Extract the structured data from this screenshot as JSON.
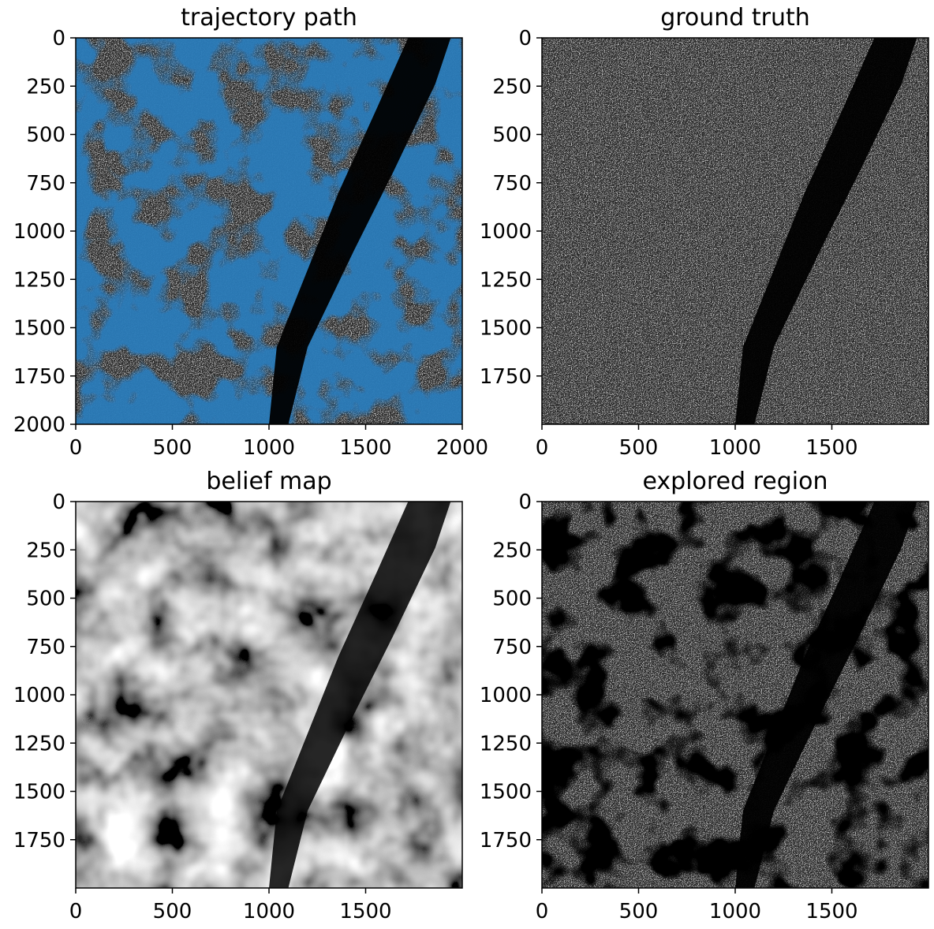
{
  "chart_data": [
    {
      "type": "heatmap",
      "title": "trajectory path",
      "xlim": [
        0,
        2000
      ],
      "ylim": [
        2000,
        0
      ],
      "xticks": [
        0,
        500,
        1000,
        1500,
        2000
      ],
      "yticks": [
        0,
        250,
        500,
        750,
        1000,
        1250,
        1500,
        1750,
        2000
      ],
      "xtick_labels": [
        "0",
        "500",
        "1000",
        "1500",
        "2000"
      ],
      "ytick_labels": [
        "0",
        "250",
        "500",
        "750",
        "1000",
        "1250",
        "1500",
        "1750",
        "2000"
      ],
      "overlay_color": "#2b7bba",
      "image": "grayscale satellite mosaic with blue trajectory coverage overlay"
    },
    {
      "type": "heatmap",
      "title": "ground truth",
      "xlim": [
        0,
        2000
      ],
      "ylim": [
        2000,
        0
      ],
      "xticks": [
        0,
        500,
        1000,
        1500
      ],
      "yticks": [
        0,
        250,
        500,
        750,
        1000,
        1250,
        1500,
        1750
      ],
      "xtick_labels": [
        "0",
        "500",
        "1000",
        "1500"
      ],
      "ytick_labels": [
        "0",
        "250",
        "500",
        "750",
        "1000",
        "1250",
        "1500",
        "1750"
      ],
      "image": "grayscale satellite mosaic"
    },
    {
      "type": "heatmap",
      "title": "belief map",
      "xlim": [
        0,
        2000
      ],
      "ylim": [
        2000,
        0
      ],
      "xticks": [
        0,
        500,
        1000,
        1500
      ],
      "yticks": [
        0,
        250,
        500,
        750,
        1000,
        1250,
        1500,
        1750
      ],
      "xtick_labels": [
        "0",
        "500",
        "1000",
        "1500"
      ],
      "ytick_labels": [
        "0",
        "250",
        "500",
        "750",
        "1000",
        "1250",
        "1500",
        "1750"
      ],
      "image": "smooth grayscale belief intensity"
    },
    {
      "type": "heatmap",
      "title": "explored region",
      "xlim": [
        0,
        2000
      ],
      "ylim": [
        2000,
        0
      ],
      "xticks": [
        0,
        500,
        1000,
        1500
      ],
      "yticks": [
        0,
        250,
        500,
        750,
        1000,
        1250,
        1500,
        1750
      ],
      "xtick_labels": [
        "0",
        "500",
        "1000",
        "1500"
      ],
      "ytick_labels": [
        "0",
        "250",
        "500",
        "750",
        "1000",
        "1250",
        "1500",
        "1750"
      ],
      "image": "grayscale satellite mosaic masked to explored area"
    }
  ]
}
